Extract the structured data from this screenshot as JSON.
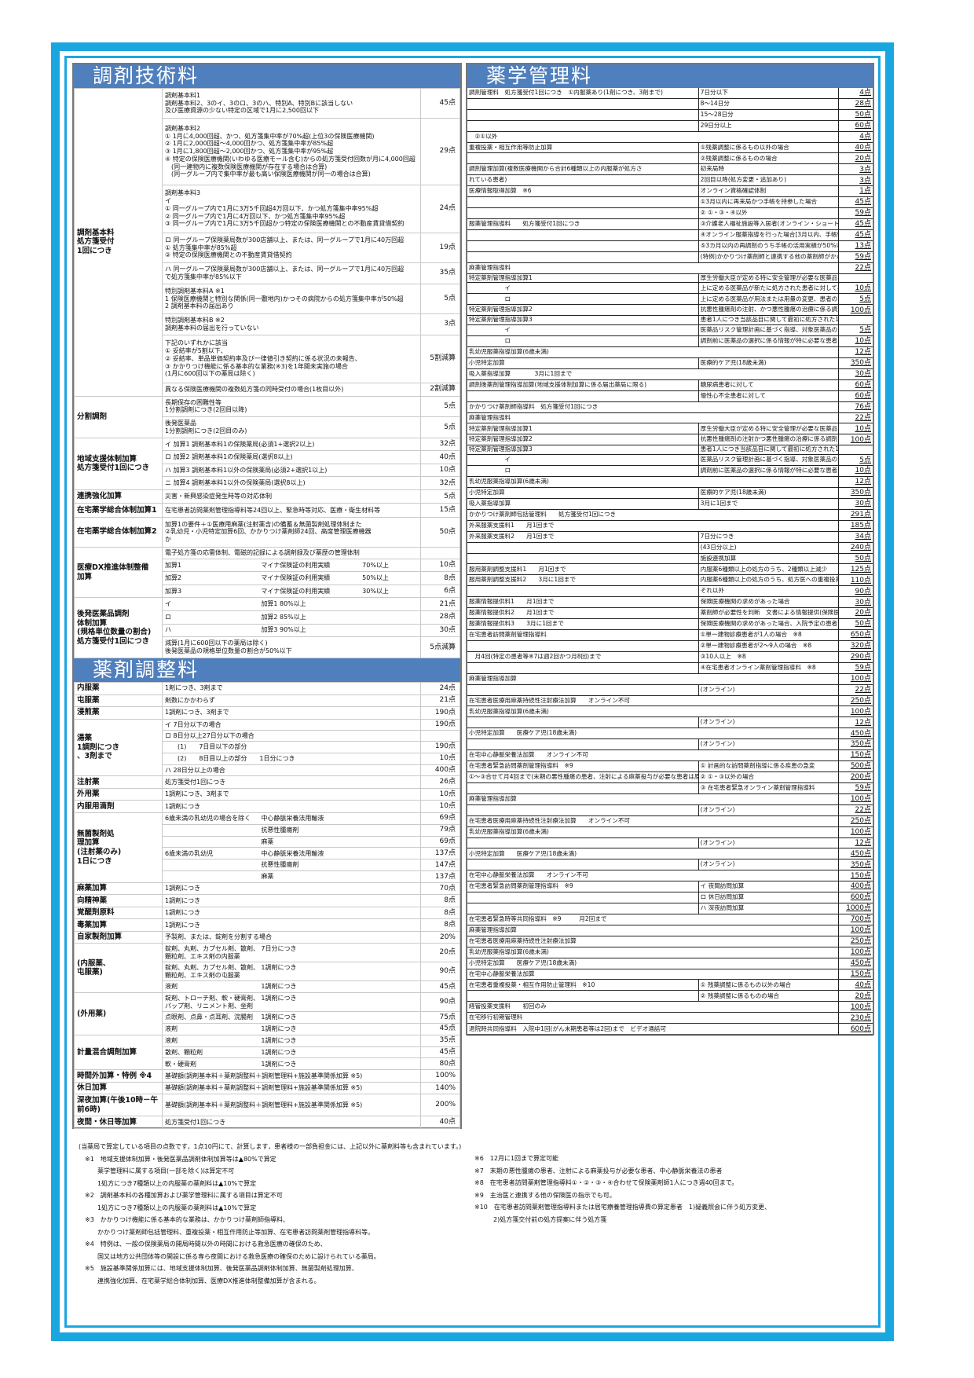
{
  "colors": {
    "frame": "#1aa7e0",
    "header": "#4f7fbd"
  },
  "tech": {
    "title": "調剤技術料",
    "groups": [
      {
        "label": "調剤基本料\n 処方箋受付\n 1回につき",
        "items": [
          {
            "d": "調剤基本料1\n調剤基本料2、3のイ、3のロ、3のハ、特別A、特別Bに該当しない\n及び医療資源の少ない特定の区域で1月に2,500回以下",
            "p": "45点"
          },
          {
            "d": "調剤基本料2\n① 1月に4,000回超、かつ、処方箋集中率が70%超(上位3の保険医療機関)\n② 1月に2,000回超～4,000回かつ、処方箋集中率が85%超\n③ 1月に1,800回超～2,000回かつ、処方箋集中率が95%超\n④ 特定の保険医療機関(いわゆる医療モール含む)からの処方箋受付回数が月に4,000回超\n　(同一建物内に複数保険医療機関が存在する場合は合算)\n　(同一グループ内で集中率が最も高い保険医療機関が同一の場合は合算)",
            "p": "29点"
          },
          {
            "d": "調剤基本料3\nイ\n ① 同一グループ内で1月に3万5千回超4万回以下、かつ処方箋集中率95%超\n ② 同一グループ内で1月に4万回以下、かつ処方箋集中率95%超\n ③ 同一グループ内で1月に3万5千回超かつ特定の保険医療機関との不動産賃貸借契約",
            "p": "24点"
          },
          {
            "d": "ロ 同一グループ保険薬局数が300店舗以上、または、同一グループで1月に40万回超\n ① 処方箋集中率が85%超\n ② 特定の保険医療機関との不動産賃貸借契約",
            "p": "19点"
          },
          {
            "d": "ハ 同一グループ保険薬局数が300店舗以上、または、同一グループで1月に40万回超\n で処方箋集中率が85%以下",
            "p": "35点"
          },
          {
            "d": "特別調剤基本料A ※1\n1 保険医療機関と特別な関係(同一敷地内)かつその病院からの処方箋集中率が50%超\n2 調剤基本料の届出あり",
            "p": "5点"
          },
          {
            "d": "特別調剤基本料B ※2\n 調剤基本料の届出を行っていない",
            "p": "3点"
          },
          {
            "d": "下記のいずれかに該当\n① 妥結率が5割以下、\n② 妥結率、単品単価契約率及び一律値引き契約に係る状況の未報告、\n③ かかりつけ機能に係る基本的な業務(※3)を1年間未実施の場合\n(1月に600回以下の薬局は除く)",
            "p": "5割減算"
          },
          {
            "d": "異なる保険医療機関の複数処方箋の同時受付の場合(1枚目以外)",
            "p": "2割減算"
          }
        ]
      },
      {
        "label": "分割調剤",
        "items": [
          {
            "d": "長期保存の困難性等\n1分割調剤につき(2回目以降)",
            "p": "5点"
          },
          {
            "d": "後発医薬品\n1分割調剤につき(2回目のみ)",
            "p": "5点"
          }
        ]
      },
      {
        "label": "地域支援体制加算\n処方箋受付1回につき",
        "items": [
          {
            "d": "イ 加算1 調剤基本料1の保険薬局(必須1+選択2以上)",
            "p": "32点"
          },
          {
            "d": "ロ 加算2 調剤基本料1の保険薬局(選択8以上)",
            "p": "40点"
          },
          {
            "d": "ハ 加算3 調剤基本料1以外の保険薬局(必須2+選択1以上)",
            "p": "10点"
          },
          {
            "d": "ニ 加算4 調剤基本料1以外の保険薬局(選択8以上)",
            "p": "32点"
          }
        ]
      },
      {
        "label": "連携強化加算",
        "items": [
          {
            "d": "災害・新興感染症発生時等の対応体制",
            "p": "5点"
          }
        ]
      },
      {
        "label": "在宅薬学総合体制加算1",
        "items": [
          {
            "d": "在宅患者訪問薬剤管理指導料等24回以上、緊急時等対応、医療・衛生材料等",
            "p": "15点"
          }
        ]
      },
      {
        "label": "在宅薬学総合体制加算2",
        "items": [
          {
            "d": "加算1の要件＋①医療用麻薬(注射薬含)の備蓄＆無菌製剤処理体制また\n②乳幼児・小児特定加算6回、かかりつけ薬剤師24回、高度管理医療機器\nか",
            "p": "50点"
          }
        ]
      },
      {
        "label": "医療DX推進体制整備\n加算",
        "items": [
          {
            "d": "電子処方箋の応需体制、電磁的記録による調剤録及び薬歴の管理体制",
            "p": ""
          },
          {
            "cols": [
              "加算1",
              "マイナ保険証の利用実績",
              "70%以上"
            ],
            "p": "10点"
          },
          {
            "cols": [
              "加算2",
              "マイナ保険証の利用実績",
              "50%以上"
            ],
            "p": "8点"
          },
          {
            "cols": [
              "加算3",
              "マイナ保険証の利用実績",
              "30%以上"
            ],
            "p": "6点"
          }
        ]
      },
      {
        "label": "後発医薬品調剤\n体制加算\n(規格単位数量の割合)\n処方箋受付1回につき",
        "items": [
          {
            "cols": [
              "イ",
              "加算1 80%以上"
            ],
            "p": "21点"
          },
          {
            "cols": [
              "ロ",
              "加算2 85%以上"
            ],
            "p": "28点"
          },
          {
            "cols": [
              "ハ",
              "加算3 90%以上"
            ],
            "p": "30点"
          },
          {
            "d": "減算(1月に600回以下の薬局は除く)\n後発医薬品の規格単位数量の割合が50%以下",
            "p": "5点減算"
          }
        ]
      }
    ]
  },
  "adjust": {
    "title": "薬剤調整料",
    "groups": [
      {
        "label": "内服薬",
        "items": [
          {
            "d": "1剤につき、3剤まで",
            "p": "24点"
          }
        ]
      },
      {
        "label": "屯服薬",
        "items": [
          {
            "d": "剤数にかかわらず",
            "p": "21点"
          }
        ]
      },
      {
        "label": "浸煎薬",
        "items": [
          {
            "d": "1調剤につき、3剤まで",
            "p": "190点"
          }
        ]
      },
      {
        "label": "湯薬\n1調剤につき\n、3剤まで",
        "items": [
          {
            "d": "イ 7日分以下の場合",
            "p": "190点"
          },
          {
            "d": "ロ 8日分以上27日分以下の場合",
            "p": ""
          },
          {
            "d": "　　(1)　　7日目以下の部分",
            "p": "190点"
          },
          {
            "d": "　　(2)　　8日目以上の部分　　1日分につき",
            "p": "10点"
          },
          {
            "d": "ハ 28日分以上の場合",
            "p": "400点"
          }
        ]
      },
      {
        "label": "注射薬",
        "items": [
          {
            "d": "処方箋受付1回につき",
            "p": "26点"
          }
        ]
      },
      {
        "label": "外用薬",
        "items": [
          {
            "d": "1調剤につき、3剤まで",
            "p": "10点"
          }
        ]
      },
      {
        "label": "内服用滴剤",
        "items": [
          {
            "d": "1調剤につき",
            "p": "10点"
          }
        ]
      },
      {
        "label": "無菌製剤処\n理加算\n(注射薬のみ)\n1日につき",
        "items": [
          {
            "cols": [
              "6歳未満の乳幼児の場合を除く",
              "中心静脈栄養法用輸液"
            ],
            "p": "69点"
          },
          {
            "cols": [
              "",
              "抗悪性腫瘍剤"
            ],
            "p": "79点"
          },
          {
            "cols": [
              "",
              "麻薬"
            ],
            "p": "69点"
          },
          {
            "cols": [
              "6歳未満の乳幼児",
              "中心静脈栄養法用輸液"
            ],
            "p": "137点"
          },
          {
            "cols": [
              "",
              "抗悪性腫瘍剤"
            ],
            "p": "147点"
          },
          {
            "cols": [
              "",
              "麻薬"
            ],
            "p": "137点"
          }
        ]
      },
      {
        "label": "麻薬加算",
        "items": [
          {
            "d": "1調剤につき",
            "p": "70点"
          }
        ]
      },
      {
        "label": "向精神薬",
        "items": [
          {
            "d": "1調剤につき",
            "p": "8点"
          }
        ]
      },
      {
        "label": "覚醒剤原料",
        "items": [
          {
            "d": "1調剤につき",
            "p": "8点"
          }
        ]
      },
      {
        "label": "毒薬加算",
        "items": [
          {
            "d": "1調剤につき",
            "p": "8点"
          }
        ]
      },
      {
        "label": "自家製剤加算",
        "items": [
          {
            "d": "予製剤、または、錠剤を分割する場合",
            "p": "20%"
          }
        ]
      },
      {
        "label": "(内服薬、\n屯服薬)",
        "items": [
          {
            "cols": [
              "錠剤、丸剤、カプセル剤、散剤、顆粒剤、エキス剤の内服薬",
              "7日分につき"
            ],
            "p": "20点"
          },
          {
            "cols": [
              "錠剤、丸剤、カプセル剤、散剤、顆粒剤、エキス剤の屯服薬",
              "1調剤につき"
            ],
            "p": "90点"
          },
          {
            "cols": [
              "液剤",
              "1調剤につき"
            ],
            "p": "45点"
          }
        ]
      },
      {
        "label": "(外用薬)",
        "items": [
          {
            "cols": [
              "錠剤、トローチ剤、軟・硬膏剤、パップ剤、リニメント剤、坐剤",
              "1調剤につき"
            ],
            "p": "90点"
          },
          {
            "cols": [
              "点眼剤、点鼻・点耳剤、浣腸剤",
              "1調剤につき"
            ],
            "p": "75点"
          },
          {
            "cols": [
              "液剤",
              "1調剤につき"
            ],
            "p": "45点"
          }
        ]
      },
      {
        "label": "計量混合調剤加算",
        "items": [
          {
            "cols": [
              "液剤",
              "1調剤につき"
            ],
            "p": "35点"
          },
          {
            "cols": [
              "散剤、顆粒剤",
              "1調剤につき"
            ],
            "p": "45点"
          },
          {
            "cols": [
              "軟・硬膏剤",
              "1調剤につき"
            ],
            "p": "80点"
          }
        ]
      },
      {
        "label": "時間外加算・特例 ※4",
        "items": [
          {
            "d": "基礎額(調剤基本料＋薬剤調整料＋調剤管理料+施設基準関係加算 ※5)",
            "p": "100%"
          }
        ]
      },
      {
        "label": "休日加算",
        "items": [
          {
            "d": "基礎額(調剤基本料＋薬剤調整料＋調剤管理料+施設基準関係加算 ※5)",
            "p": "140%"
          }
        ]
      },
      {
        "label": "深夜加算(午後10時－午前6時)",
        "items": [
          {
            "d": "基礎額(調剤基本料＋薬剤調整料＋調剤管理料+施設基準関係加算 ※5)",
            "p": "200%"
          }
        ]
      },
      {
        "label": "夜間・休日等加算",
        "items": [
          {
            "d": "処方箋受付1回につき",
            "p": "40点"
          }
        ]
      }
    ]
  },
  "pharm": {
    "title": "薬学管理料",
    "rows": [
      {
        "n": "調剤管理料　処方箋受付1回につき　①内服薬あり(1剤につき、3剤まで)",
        "c": "7日分以下",
        "p": "4点"
      },
      {
        "n": "",
        "c": "8～14日分",
        "p": "28点"
      },
      {
        "n": "",
        "c": "15～28日分",
        "p": "50点"
      },
      {
        "n": "",
        "c": "29日分以上",
        "p": "60点"
      },
      {
        "n": "　②①以外",
        "c": "",
        "p": "4点"
      },
      {
        "n": "重複投薬・相互作用等防止加算",
        "c": "①残薬調整に係るもの以外の場合",
        "p": "40点"
      },
      {
        "n": "",
        "c": "②残薬調整に係るものの場合",
        "p": "20点"
      },
      {
        "n": "調剤管理加算(複数医療機関から合計6種類以上の内服薬が処方さ",
        "c": "初来局時",
        "p": "3点"
      },
      {
        "n": "れている患者)",
        "c": "2回目以降(処方変更・追加あり)",
        "p": "3点"
      },
      {
        "n": "医療情報取得加算　※6",
        "c": "オンライン資格確認体制",
        "p": "1点"
      },
      {
        "n": "",
        "c": "①3月以内に再来局かつ手帳を持参した場合",
        "p": "45点"
      },
      {
        "n": "",
        "c": "② ①・③・④以外",
        "p": "59点"
      },
      {
        "n": "服薬管理指導料　　処方箋受付1回につき",
        "c": "③介護老人福祉施設等入居者(オンライン・ショートステイ含む)",
        "p": "45点"
      },
      {
        "n": "",
        "c": "④オンライン服薬指導を行った場合[3月以内、手帳情報提供あり)",
        "p": "45点"
      },
      {
        "n": "",
        "c": "⑤3カ月以内の再調剤のうち手帳の活用実績が50%以下",
        "p": "13点"
      },
      {
        "n": "",
        "c": "(特例)かかりつけ薬剤師と連携する他の薬剤師がかかりつけ薬剤師指導料等の算定患者に対応した場合",
        "p": "59点"
      },
      {
        "n": "麻薬管理指導料",
        "c": "",
        "p": "22点"
      },
      {
        "n": "特定薬剤管理指導加算1",
        "c": "厚生労働大臣が定める特に安全管理が必要な医薬品",
        "p": ""
      },
      {
        "n": "　　　　　　イ",
        "c": "上に定める医薬品が新たに処方された患者に対して必要な指導を行った場合",
        "p": "10点"
      },
      {
        "n": "　　　　　　ロ",
        "c": "上に定める医薬品が用法または用量の変更、患者の副作用の発現状況に基づき薬剤師が必要と認めて指導を行った場合",
        "p": "5点"
      },
      {
        "n": "特定薬剤管理指導加算2",
        "c": "抗悪性腫瘍剤の注射、かつ悪性腫瘍の治療に係る調剤　月1回まで",
        "p": "100点"
      },
      {
        "n": "特定薬剤管理指導加算3",
        "c": "患者1人につき当該品目に関して最初に処方された1回に限り",
        "p": ""
      },
      {
        "n": "　　　　　　イ",
        "c": "医薬品リスク管理計画に基づく指導、対象医薬品の最初の処方時1回まで",
        "p": "5点"
      },
      {
        "n": "　　　　　　ロ",
        "c": "調剤前に医薬品の選択に係る情報が特に必要な患者に説明および指導を行った場合 ・長期収載品の選定療養に関する説明 ・医薬品の供給問題により、前回調剤された銘柄から別の銘柄の医薬品に変更になる場合の説明",
        "p": "10点"
      },
      {
        "n": "乳幼児服薬指導加算(6歳未満)",
        "c": "",
        "p": "12点"
      },
      {
        "n": "小児特定加算",
        "c": "医療的ケア児(18歳未満)",
        "p": "350点"
      },
      {
        "n": "吸入薬指導加算　　　　3月に1回まで",
        "c": "",
        "p": "30点"
      },
      {
        "n": "調剤後薬剤管理指導加算(地域支援体制加算に係る届出薬局に限る)",
        "c": "糖尿病患者に対して",
        "p": "60点"
      },
      {
        "n": "",
        "c": "慢性心不全患者に対して",
        "p": "60点"
      },
      {
        "n": "かかりつけ薬剤師指導料　処方箋受付1回につき",
        "c": "",
        "p": "76点"
      },
      {
        "n": "麻薬管理指導料",
        "c": "",
        "p": "22点"
      },
      {
        "n": "特定薬剤管理指導加算1",
        "c": "厚生労働大臣が定める特に安全管理が必要な医薬品",
        "p": "10点"
      },
      {
        "n": "特定薬剤管理指導加算2",
        "c": "抗悪性腫瘍剤の注射かつ悪性腫瘍の治療に係る調剤　月1回まで",
        "p": "100点"
      },
      {
        "n": "特定薬剤管理指導加算3",
        "c": "患者1人につき当該品目に関して最初に処方された1回に限り",
        "p": ""
      },
      {
        "n": "　　　　　　イ",
        "c": "医薬品リスク管理計画に基づく指導、対象医薬品の最初の処方時1回まで",
        "p": "5点"
      },
      {
        "n": "　　　　　　ロ",
        "c": "調剤前に医薬品の選択に係る情報が特に必要な患者に説明および指導を行った場合 ・長期収載品の選定療養に関する説明 ・医薬品の供給問題により、前回調剤された銘柄から別の銘柄の医薬品に変更になる場合の説明",
        "p": "10点"
      },
      {
        "n": "乳幼児服薬指導加算(6歳未満)",
        "c": "",
        "p": "12点"
      },
      {
        "n": "小児特定加算",
        "c": "医療的ケア児(18歳未満)",
        "p": "350点"
      },
      {
        "n": "吸入薬指導加算",
        "c": "3月に1回まで",
        "p": "30点"
      },
      {
        "n": "かかりつけ薬剤師包括管理料　　処方箋受付1回につき",
        "c": "",
        "p": "291点"
      },
      {
        "n": "外来服薬支援料1　　月1回まで",
        "c": "",
        "p": "185点"
      },
      {
        "n": "外来服薬支援料2　　月1回まで",
        "c": "7日分につき",
        "p": "34点"
      },
      {
        "n": "",
        "c": "(43日分以上)",
        "p": "240点"
      },
      {
        "n": "",
        "c": "施設連携加算",
        "p": "50点"
      },
      {
        "n": "服用薬剤調整支援料1　　月1回まで",
        "c": "内服薬6種類以上の処方のうち、2種類以上減少",
        "p": "125点"
      },
      {
        "n": "服用薬剤調整支援料2　　3月に1回まで",
        "c": "内服薬6種類以上の処方のうち、処方医への重複投薬等の解消提案を行った場合 重複投薬等の解消の実績あり",
        "p": "110点"
      },
      {
        "n": "",
        "c": "それ以外",
        "p": "90点"
      },
      {
        "n": "服薬情報提供料1　　月1回まで",
        "c": "保険医療機関の求めがあった場合",
        "p": "30点"
      },
      {
        "n": "服薬情報提供料2　　月1回まで",
        "c": "薬剤師が必要性を判断　文書による情報提供(保険医療機関、リフィル処方箋の調剤後、介護支援専門員)",
        "p": "20点"
      },
      {
        "n": "服薬情報提供料3　　3月に1回まで",
        "c": "保険医療機関の求めがあった場合、入院予定の患者に対して",
        "p": "50点"
      },
      {
        "n": "在宅患者訪問薬剤管理指導料",
        "c": "①単一建物診療患者が1人の場合　※8",
        "p": "650点"
      },
      {
        "n": "",
        "c": "②単一建物診療患者が2～9人の場合　※8",
        "p": "320点"
      },
      {
        "n": "　月4回(特定の患者等※7は週2回かつ月8回)まで",
        "c": "③10人以上　※8",
        "p": "290点"
      },
      {
        "n": "",
        "c": "④在宅患者オンライン薬剤管理指導料　※8",
        "p": "59点"
      },
      {
        "n": "麻薬管理指導加算",
        "c": "",
        "p": "100点"
      },
      {
        "n": "",
        "c": "(オンライン)",
        "p": "22点"
      },
      {
        "n": "在宅患者医療用麻薬持続性注射療法加算　　オンライン不可",
        "c": "",
        "p": "250点"
      },
      {
        "n": "乳幼児服薬指導加算(6歳未満)",
        "c": "",
        "p": "100点"
      },
      {
        "n": "",
        "c": "(オンライン)",
        "p": "12点"
      },
      {
        "n": "小児特定加算　　医療ケア児(18歳未満)",
        "c": "",
        "p": "450点"
      },
      {
        "n": "",
        "c": "(オンライン)",
        "p": "350点"
      },
      {
        "n": "在宅中心静脈栄養法加算　　オンライン不可",
        "c": "",
        "p": "150点"
      },
      {
        "n": "在宅患者緊急訪問薬剤管理指導料　※9",
        "c": "① 計画的な訪問薬剤指導に係る疾患の急変",
        "p": "500点"
      },
      {
        "n": "①～③合せて月4回まで(末期の悪性腫瘍の患者、注射による麻薬投与が必要な患者は原則として月8回まで)",
        "c": "② ①・③以外の場合",
        "p": "200点"
      },
      {
        "n": "",
        "c": "③ 在宅患者緊急オンライン薬剤管理指導料",
        "p": "59点"
      },
      {
        "n": "麻薬管理指導加算",
        "c": "",
        "p": "100点"
      },
      {
        "n": "",
        "c": "(オンライン)",
        "p": "22点"
      },
      {
        "n": "在宅患者医療用麻薬持続性注射療法加算　　オンライン不可",
        "c": "",
        "p": "250点"
      },
      {
        "n": "乳幼児服薬指導加算(6歳未満)",
        "c": "",
        "p": "100点"
      },
      {
        "n": "",
        "c": "(オンライン)",
        "p": "12点"
      },
      {
        "n": "小児特定加算　　医療ケア児(18歳未満)",
        "c": "",
        "p": "450点"
      },
      {
        "n": "",
        "c": "(オンライン)",
        "p": "350点"
      },
      {
        "n": "在宅中心静脈栄養法加算　　オンライン不可",
        "c": "",
        "p": "150点"
      },
      {
        "n": "在宅患者緊急訪問薬剤管理指導料　※9",
        "c": "イ 夜間訪問加算",
        "p": "400点"
      },
      {
        "n": "",
        "c": "ロ 休日訪問加算",
        "p": "600点"
      },
      {
        "n": "",
        "c": "ハ 深夜訪問加算",
        "p": "1000点"
      },
      {
        "n": "在宅患者緊急時等共同指導料　※9　　　月2回まで",
        "c": "",
        "p": "700点"
      },
      {
        "n": "麻薬管理指導加算",
        "c": "",
        "p": "100点"
      },
      {
        "n": "在宅患者医療用麻薬持続性注射療法加算",
        "c": "",
        "p": "250点"
      },
      {
        "n": "乳幼児服薬指導加算(6歳未満)",
        "c": "",
        "p": "100点"
      },
      {
        "n": "小児特定加算　　医療ケア児(18歳未満)",
        "c": "",
        "p": "450点"
      },
      {
        "n": "在宅中心静脈栄養法加算",
        "c": "",
        "p": "150点"
      },
      {
        "n": "在宅患者重複投薬・相互作用防止管理料　※10",
        "c": "① 残薬調整に係るもの以外の場合",
        "p": "40点"
      },
      {
        "n": "",
        "c": "② 残薬調整に係るものの場合",
        "p": "20点"
      },
      {
        "n": "経管投薬支援料　　初回のみ",
        "c": "",
        "p": "100点"
      },
      {
        "n": "在宅移行初期管理料",
        "c": "",
        "p": "230点"
      },
      {
        "n": "退院時共同指導料　入院中1回(がん末期患者等は2回)まで　ビデオ通話可",
        "c": "",
        "p": "600点"
      }
    ]
  },
  "notes": {
    "left": "(当薬局で算定している項目の点数です，1点10円にて、計算します，患者様の一部負担金には、上記以外に薬剤料等も含まれています。)\n　※1　地域支援体制加算・後発医薬品調剤体制加算等は▲80%で算定\n　　　薬学管理料に属する項目(一部を除く)は算定不可\n　　　1処方につき7種類以上の内服薬の薬剤料は▲10%で算定\n　※2　調剤基本料の各種加算および薬学管理料に属する項目は算定不可\n　　　1処方につき7種類以上の内服薬の薬剤料は▲10%で算定\n　※3　かかりつけ機能に係る基本的な業務は、かかりつけ薬剤師指導料、\n　　　かかりつけ薬剤師包括管理料、重複投薬・相互作用防止等加算、在宅患者訪問薬剤管理指導料等。\n　※4　特例は、一般の保険薬局の開局時間以外の時間における救急医療の確保のため、\n　　　国又は地方公共団体等の開設に係る専ら夜間における救急医療の確保のために設けられている薬局。\n　※5　施設基準関係加算には、地域支援体制加算、後発医薬品調剤体制加算、無菌製剤処理加算、\n　　　連携強化加算、在宅薬学総合体制加算、医療DX推進体制整備加算が含まれる。",
    "right": "※6　12月に1回まで算定可能\n※7　末期の悪性腫瘍の患者、注射による麻薬投与が必要な患者、中心静脈栄養法の患者\n※8　在宅患者訪問薬剤管理指導料①・②・③・④合わせて保険薬剤師1人につき週40回まで。\n※9　主治医と連携する他の保険医の指示でも可。\n※10　在宅患者訪問薬剤管理指導料または居宅療養管理指導費の算定患者　1)疑義照会に伴う処方変更、\n　　　2)処方箋交付前の処方提案に伴う処方箋"
  }
}
